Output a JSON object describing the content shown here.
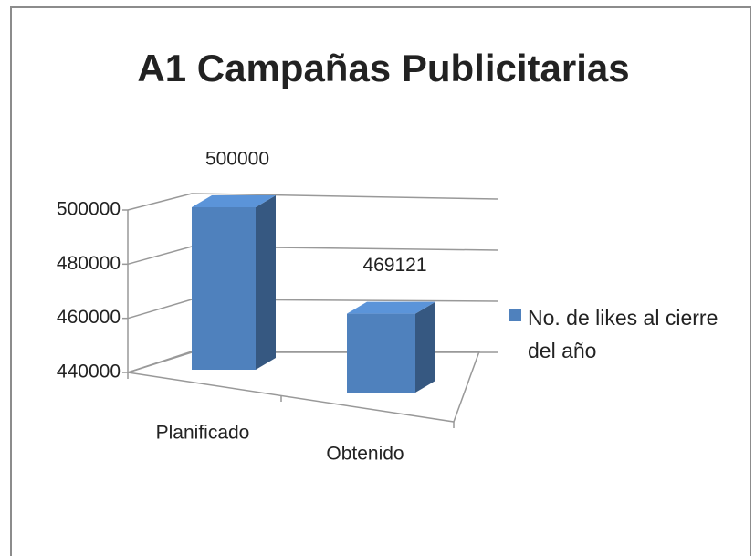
{
  "chart_data": {
    "type": "bar3d",
    "title": "A1 Campañas Publicitarias",
    "categories": [
      "Planificado",
      "Obtenido"
    ],
    "series": [
      {
        "name": "No. de likes al cierre del año",
        "color": "#4f81bd",
        "values": [
          500000,
          469121
        ]
      }
    ],
    "ylim": [
      440000,
      500000
    ],
    "yticks": [
      440000,
      460000,
      480000,
      500000
    ],
    "grid": true,
    "legend": "right"
  }
}
